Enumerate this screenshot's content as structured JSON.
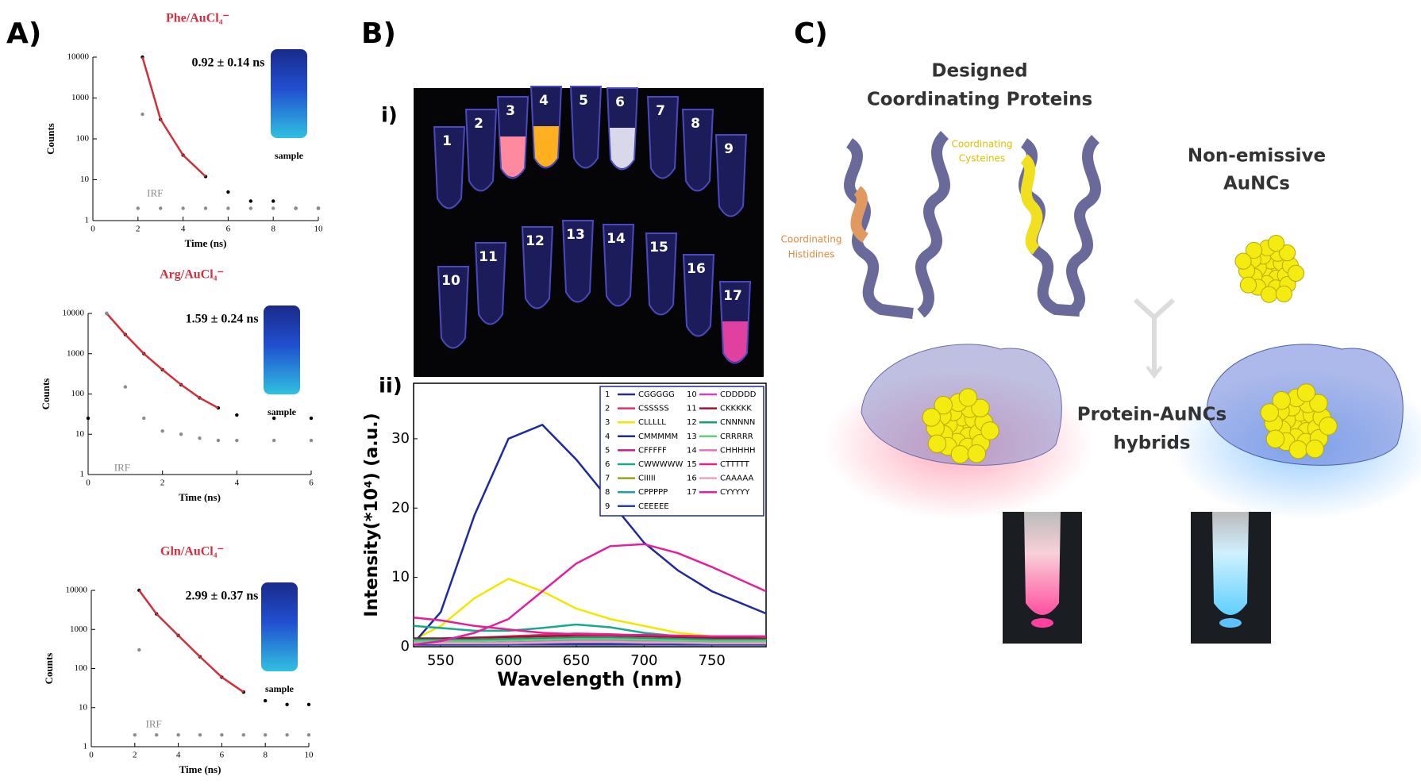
{
  "panel_labels": [
    "A)",
    "B)",
    "C)"
  ],
  "chart_data": [
    {
      "type": "line",
      "title": "Phe/AuCl₄⁻",
      "annotation": "0.92 ± 0.14 ns",
      "xlabel": "Time (ns)",
      "ylabel": "Counts",
      "log_y": true,
      "x": [
        2,
        2.2,
        3,
        4,
        5,
        6,
        7,
        8,
        9,
        10
      ],
      "xlim": [
        0,
        10
      ],
      "xticks": [
        0,
        2,
        4,
        6,
        8,
        10
      ],
      "ylim": [
        1,
        10000
      ],
      "yticks": [
        1,
        10,
        100,
        1000,
        10000
      ],
      "series": [
        {
          "name": "sample",
          "color": "#000000",
          "mode": "markers",
          "values": [
            null,
            10000,
            300,
            40,
            12,
            5,
            3,
            3,
            2,
            2
          ]
        },
        {
          "color": "#d0303a",
          "mode": "lines",
          "values": [
            null,
            10000,
            300,
            40,
            12,
            null,
            null,
            null,
            null,
            null
          ]
        },
        {
          "name": "IRF",
          "color": "#8c8c8c",
          "mode": "markers",
          "values": [
            2,
            400,
            2,
            2,
            2,
            2,
            2,
            2,
            2,
            2
          ]
        }
      ]
    },
    {
      "type": "line",
      "title": "Arg/AuCl₄⁻",
      "annotation": "1.59 ± 0.24 ns",
      "xlabel": "Time (ns)",
      "ylabel": "Counts",
      "log_y": true,
      "x": [
        0,
        0.5,
        1,
        1.5,
        2,
        2.5,
        3,
        3.5,
        4,
        5,
        6
      ],
      "xlim": [
        0,
        6
      ],
      "xticks": [
        0,
        2,
        4,
        6
      ],
      "ylim": [
        1,
        10000
      ],
      "yticks": [
        1,
        10,
        100,
        1000,
        10000
      ],
      "series": [
        {
          "name": "sample",
          "color": "#000000",
          "mode": "markers",
          "values": [
            25,
            10000,
            3000,
            1000,
            400,
            170,
            80,
            45,
            30,
            25,
            25
          ]
        },
        {
          "color": "#d0303a",
          "mode": "lines",
          "values": [
            null,
            10000,
            3000,
            1000,
            400,
            170,
            80,
            45,
            null,
            null,
            null
          ]
        },
        {
          "name": "IRF",
          "color": "#8c8c8c",
          "mode": "markers",
          "values": [
            null,
            10000,
            150,
            25,
            12,
            10,
            8,
            7,
            7,
            7,
            7
          ]
        }
      ]
    },
    {
      "type": "line",
      "title": "Gln/AuCl₄⁻",
      "annotation": "2.99 ± 0.37 ns",
      "xlabel": "Time (ns)",
      "ylabel": "Counts",
      "log_y": true,
      "x": [
        2,
        2.2,
        3,
        4,
        5,
        6,
        7,
        8,
        9,
        10
      ],
      "xlim": [
        0,
        10
      ],
      "xticks": [
        0,
        2,
        4,
        6,
        8,
        10
      ],
      "ylim": [
        1,
        10000
      ],
      "yticks": [
        1,
        10,
        100,
        1000,
        10000
      ],
      "series": [
        {
          "name": "sample",
          "color": "#000000",
          "mode": "markers",
          "values": [
            null,
            10000,
            2500,
            700,
            200,
            60,
            25,
            15,
            12,
            12
          ]
        },
        {
          "color": "#d0303a",
          "mode": "lines",
          "values": [
            null,
            10000,
            2500,
            700,
            200,
            60,
            25,
            null,
            null,
            null
          ]
        },
        {
          "name": "IRF",
          "color": "#8c8c8c",
          "mode": "markers",
          "values": [
            2,
            300,
            2,
            2,
            2,
            2,
            2,
            2,
            2,
            2
          ]
        }
      ]
    },
    {
      "type": "line",
      "panel_label": "ii)",
      "xlabel": "Wavelength (nm)",
      "ylabel": "Intensity(*10⁴) (a.u.)",
      "log_y": false,
      "x": [
        530,
        550,
        575,
        600,
        625,
        650,
        675,
        700,
        725,
        750,
        790
      ],
      "xlim": [
        530,
        790
      ],
      "xticks": [
        550,
        600,
        650,
        700,
        750
      ],
      "ylim": [
        0,
        38
      ],
      "yticks": [
        0,
        10,
        20,
        30
      ],
      "legend_numbers": [
        "1",
        "2",
        "3",
        "4",
        "5",
        "6",
        "7",
        "8",
        "9",
        "10",
        "11",
        "12",
        "13",
        "14",
        "15",
        "16",
        "17"
      ],
      "series": [
        {
          "name": "CGGGGG",
          "color": "#2a2f7a",
          "mode": "lines",
          "values": [
            0.3,
            0.3,
            0.3,
            0.3,
            0.3,
            0.3,
            0.3,
            0.3,
            0.3,
            0.3,
            0.3
          ]
        },
        {
          "name": "CSSSSS",
          "color": "#e0306a",
          "mode": "lines",
          "values": [
            1,
            1.1,
            1.3,
            1.5,
            1.7,
            1.9,
            1.8,
            1.6,
            1.4,
            1.2,
            1
          ]
        },
        {
          "name": "CLLLLL",
          "color": "#f2e600",
          "mode": "lines",
          "values": [
            1,
            3,
            7,
            9.8,
            8,
            5.5,
            4,
            3,
            2,
            1.5,
            1
          ]
        },
        {
          "name": "CMMMMM",
          "color": "#1f2a9e",
          "mode": "lines",
          "values": [
            0.5,
            5,
            19,
            30,
            32,
            27,
            21,
            15,
            11,
            8,
            4.8
          ]
        },
        {
          "name": "CFFFFF",
          "color": "#c0208a",
          "mode": "lines",
          "values": [
            0.5,
            0.5,
            0.5,
            0.6,
            0.7,
            0.8,
            0.8,
            0.7,
            0.6,
            0.5,
            0.5
          ]
        },
        {
          "name": "CWWWWW",
          "color": "#1aa88a",
          "mode": "lines",
          "values": [
            3,
            2.7,
            2.3,
            2.3,
            2.7,
            3.2,
            2.8,
            2,
            1.5,
            1,
            0.8
          ]
        },
        {
          "name": "CIIIII",
          "color": "#9aa020",
          "mode": "lines",
          "values": [
            0.3,
            0.3,
            0.3,
            0.4,
            0.4,
            0.5,
            0.5,
            0.4,
            0.4,
            0.3,
            0.3
          ]
        },
        {
          "name": "CPPPPP",
          "color": "#20a0a0",
          "mode": "lines",
          "values": [
            0.5,
            0.5,
            0.5,
            0.6,
            0.7,
            0.9,
            0.9,
            0.8,
            0.7,
            0.6,
            0.5
          ]
        },
        {
          "name": "CEEEEE",
          "color": "#2a40b0",
          "mode": "lines",
          "values": [
            0.3,
            0.3,
            0.3,
            0.3,
            0.4,
            0.4,
            0.4,
            0.4,
            0.3,
            0.3,
            0.3
          ]
        },
        {
          "name": "CDDDDD",
          "color": "#d040c0",
          "mode": "lines",
          "values": [
            1,
            1,
            1,
            1.1,
            1.2,
            1.3,
            1.3,
            1.2,
            1.1,
            1,
            1
          ]
        },
        {
          "name": "CKKKKK",
          "color": "#a01030",
          "mode": "lines",
          "values": [
            1.2,
            1.2,
            1.3,
            1.4,
            1.5,
            1.6,
            1.6,
            1.5,
            1.4,
            1.3,
            1.2
          ]
        },
        {
          "name": "CNNNNN",
          "color": "#10a070",
          "mode": "lines",
          "values": [
            1,
            1,
            1,
            1.1,
            1.2,
            1.3,
            1.3,
            1.2,
            1.1,
            1,
            1
          ]
        },
        {
          "name": "CRRRRR",
          "color": "#60d080",
          "mode": "lines",
          "values": [
            0.8,
            0.8,
            0.8,
            0.9,
            1,
            1.1,
            1.1,
            1,
            0.9,
            0.8,
            0.8
          ]
        },
        {
          "name": "CHHHHH",
          "color": "#e070c0",
          "mode": "lines",
          "values": [
            0.5,
            0.5,
            0.5,
            0.6,
            0.7,
            0.8,
            0.8,
            0.7,
            0.6,
            0.5,
            0.5
          ]
        },
        {
          "name": "CTTTTT",
          "color": "#e02090",
          "mode": "lines",
          "values": [
            4.2,
            3.8,
            3,
            2.5,
            2,
            1.8,
            1.7,
            1.7,
            1.6,
            1.5,
            1.5
          ]
        },
        {
          "name": "CAAAAA",
          "color": "#f0a0c0",
          "mode": "lines",
          "values": [
            0.5,
            0.5,
            0.5,
            0.5,
            0.6,
            0.7,
            0.7,
            0.6,
            0.6,
            0.5,
            0.5
          ]
        },
        {
          "name": "CYYYYY",
          "color": "#e020a0",
          "mode": "lines",
          "values": [
            0.3,
            0.8,
            2,
            4,
            8,
            12,
            14.5,
            14.8,
            13.5,
            11.5,
            8
          ]
        }
      ]
    }
  ],
  "photo": {
    "panel_label": "i)",
    "tubes": [
      "1",
      "2",
      "3",
      "4",
      "5",
      "6",
      "7",
      "8",
      "9",
      "10",
      "11",
      "12",
      "13",
      "14",
      "15",
      "16",
      "17"
    ]
  },
  "diagram": {
    "title": [
      "Designed",
      "Coordinating Proteins"
    ],
    "cysteines": [
      "Coordinating",
      "Cysteines"
    ],
    "histidines": [
      "Coordinating",
      "Histidines"
    ],
    "aunc": [
      "Non-emissive",
      "AuNCs"
    ],
    "hybrids": [
      "Protein-AuNCs",
      "hybrids"
    ]
  }
}
